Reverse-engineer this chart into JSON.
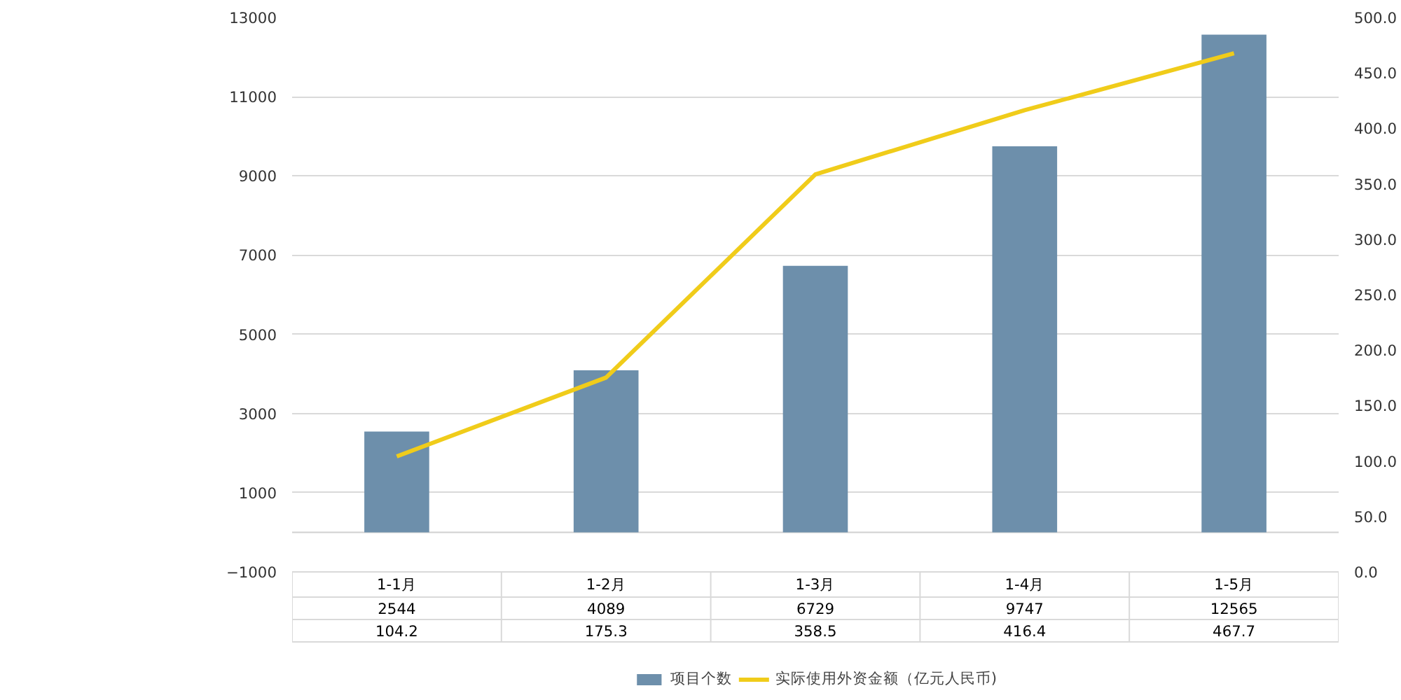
{
  "chart_data": {
    "type": "bar",
    "categories": [
      "1-1月",
      "1-2月",
      "1-3月",
      "1-4月",
      "1-5月"
    ],
    "series": [
      {
        "name": "项目个数",
        "color": "#6d8fab",
        "values": [
          2544,
          4089,
          6729,
          9747,
          12565
        ]
      },
      {
        "name": "实际使用外资金额（亿元人民币)",
        "type": "line",
        "axis": "y2",
        "color": "#f0cc1a",
        "values": [
          104.2,
          175.3,
          358.5,
          416.4,
          467.7
        ]
      }
    ],
    "ylim": [
      -1000,
      13000
    ],
    "yticks": [
      -1000,
      1000,
      3000,
      5000,
      7000,
      9000,
      11000,
      13000
    ],
    "y2lim": [
      0,
      500
    ],
    "y2ticks": [
      {
        "value": 0,
        "label": "0.0"
      },
      {
        "value": 50,
        "label": "50.0"
      },
      {
        "value": 100,
        "label": "100.0"
      },
      {
        "value": 150,
        "label": "150.0"
      },
      {
        "value": 200,
        "label": "200.0"
      },
      {
        "value": 250,
        "label": "250.0"
      },
      {
        "value": 300,
        "label": "300.0"
      },
      {
        "value": 350,
        "label": "350.0"
      },
      {
        "value": 400,
        "label": "400.0"
      },
      {
        "value": 450,
        "label": "450.0"
      },
      {
        "value": 500,
        "label": "500.0"
      }
    ],
    "grid": "y",
    "legend": "bottom",
    "data_labels": true
  }
}
